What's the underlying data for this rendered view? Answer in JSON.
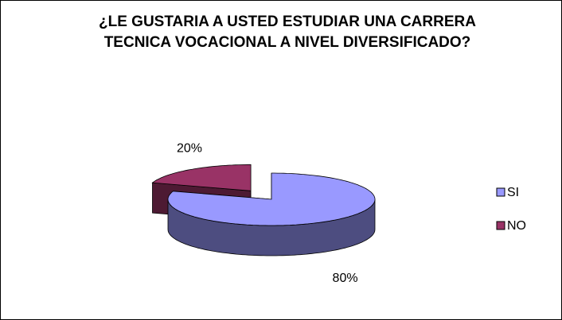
{
  "chart_data": {
    "type": "pie",
    "title": "¿LE GUSTARIA A USTED ESTUDIAR UNA CARRERA TECNICA VOCACIONAL A NIVEL DIVERSIFICADO?",
    "categories": [
      "SI",
      "NO"
    ],
    "values": [
      80,
      20
    ],
    "value_labels": [
      "80%",
      "20%"
    ],
    "colors": [
      "#9999ff",
      "#993366"
    ],
    "legend": "right"
  }
}
